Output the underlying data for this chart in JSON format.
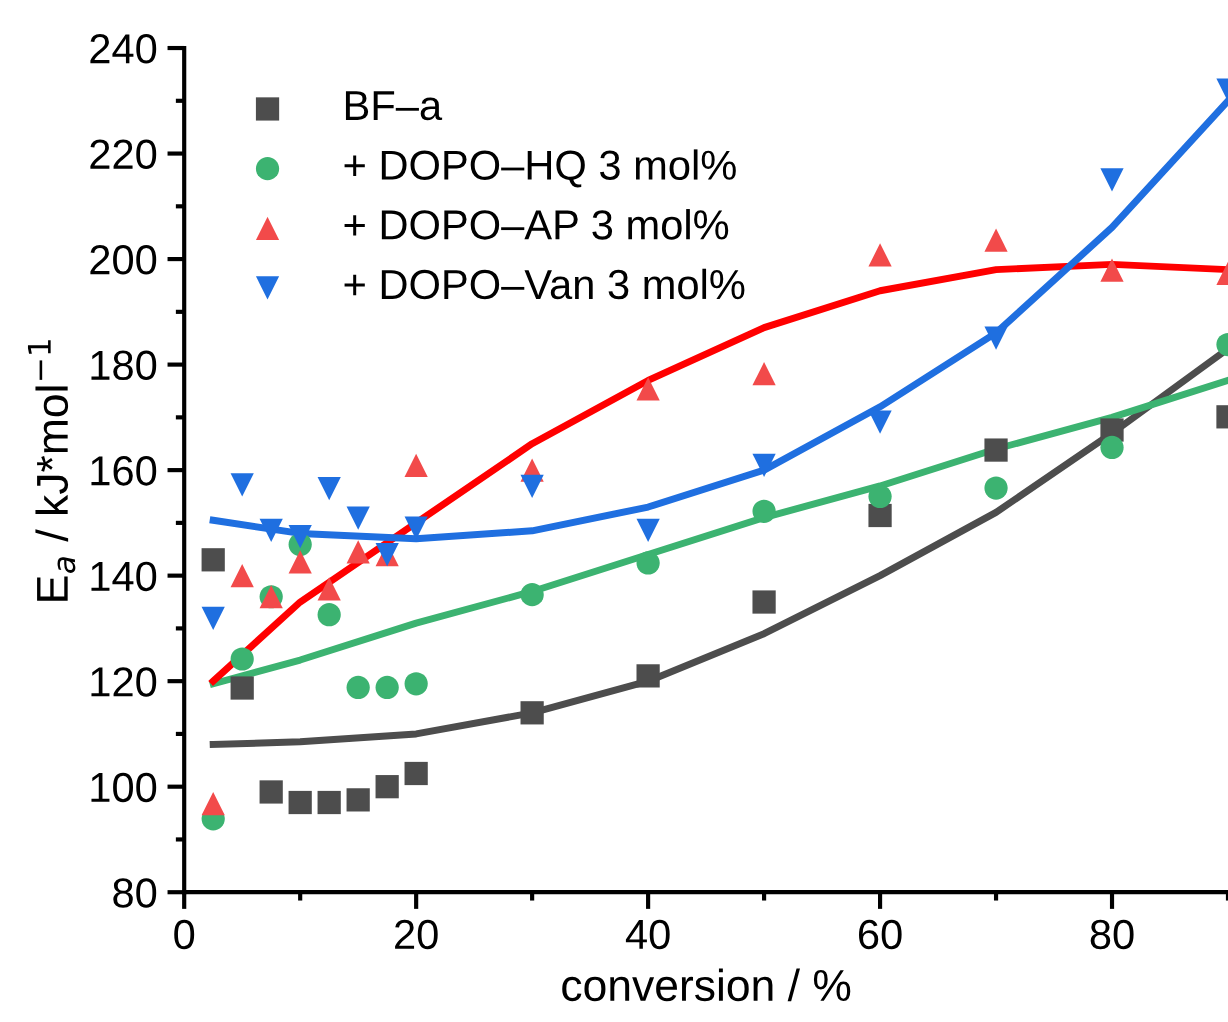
{
  "chart_data": {
    "type": "scatter",
    "xlabel": "conversion / %",
    "ylabel": "E$_{a}$ / kJ*mol$^{−1}$",
    "x": [
      2.5,
      5,
      7.5,
      10,
      12.5,
      15,
      17.5,
      20,
      30,
      40,
      50,
      60,
      70,
      80,
      90
    ],
    "xlim": [
      0,
      90
    ],
    "xticks": [
      0,
      20,
      40,
      60,
      80
    ],
    "ylim": [
      80,
      240
    ],
    "yticks": [
      80,
      100,
      120,
      140,
      160,
      180,
      200,
      220,
      240
    ],
    "grid": false,
    "legend": "top left",
    "series": [
      {
        "name": "BF–a",
        "color": "#4d4d4d",
        "marker": "square",
        "values": [
          143,
          118.7,
          99,
          97,
          97,
          97.5,
          100,
          102.5,
          114,
          121,
          135,
          151.4,
          163.8,
          167.6,
          170.1
        ]
      },
      {
        "name": "+ DOPO–HQ 3 mol%",
        "color": "#3cb371",
        "marker": "circle",
        "values": [
          93.9,
          124.2,
          136,
          145.9,
          132.6,
          118.8,
          118.8,
          119.5,
          136.4,
          142.4,
          152.2,
          155,
          156.6,
          164.3,
          183.8
        ]
      },
      {
        "name": "+ DOPO–AP 3 mol%",
        "color": "#f24a4a",
        "marker": "triangle",
        "values": [
          96.8,
          140,
          136,
          142.6,
          137.5,
          144.5,
          144,
          160.9,
          160,
          175.4,
          178.3,
          200.8,
          203.6,
          197.9,
          197.3
        ]
      },
      {
        "name": "+ DOPO–Van 3 mol%",
        "color": "#1f6fe0",
        "marker": "triangle_down",
        "values": [
          131.9,
          157.2,
          148.6,
          147.4,
          156.5,
          150.9,
          144,
          149,
          156.9,
          148.6,
          160.9,
          169.1,
          185,
          215,
          232
        ]
      },
      {
        "type": "line",
        "color": "#4d4d4d",
        "x": [
          2.5,
          10,
          20,
          30,
          40,
          50,
          60,
          70,
          80,
          90
        ],
        "values": [
          108,
          108.5,
          110,
          114,
          120,
          129,
          140,
          152,
          167,
          183
        ]
      },
      {
        "type": "line",
        "color": "#3cb371",
        "x": [
          2.5,
          10,
          20,
          30,
          40,
          50,
          60,
          70,
          80,
          90
        ],
        "values": [
          119.5,
          124,
          131,
          137,
          144,
          151,
          157,
          164,
          170,
          177
        ]
      },
      {
        "type": "line",
        "color": "#ff0000",
        "x": [
          2.5,
          10,
          20,
          30,
          40,
          50,
          60,
          70,
          80,
          90
        ],
        "values": [
          120,
          135,
          150,
          165,
          177,
          187,
          194,
          198,
          199,
          198
        ]
      },
      {
        "type": "line",
        "color": "#1f6fe0",
        "x": [
          2.5,
          10,
          20,
          30,
          40,
          50,
          60,
          70,
          80,
          90
        ],
        "values": [
          150.5,
          148,
          147,
          148.5,
          153,
          160,
          172,
          186,
          206,
          230
        ]
      }
    ]
  }
}
